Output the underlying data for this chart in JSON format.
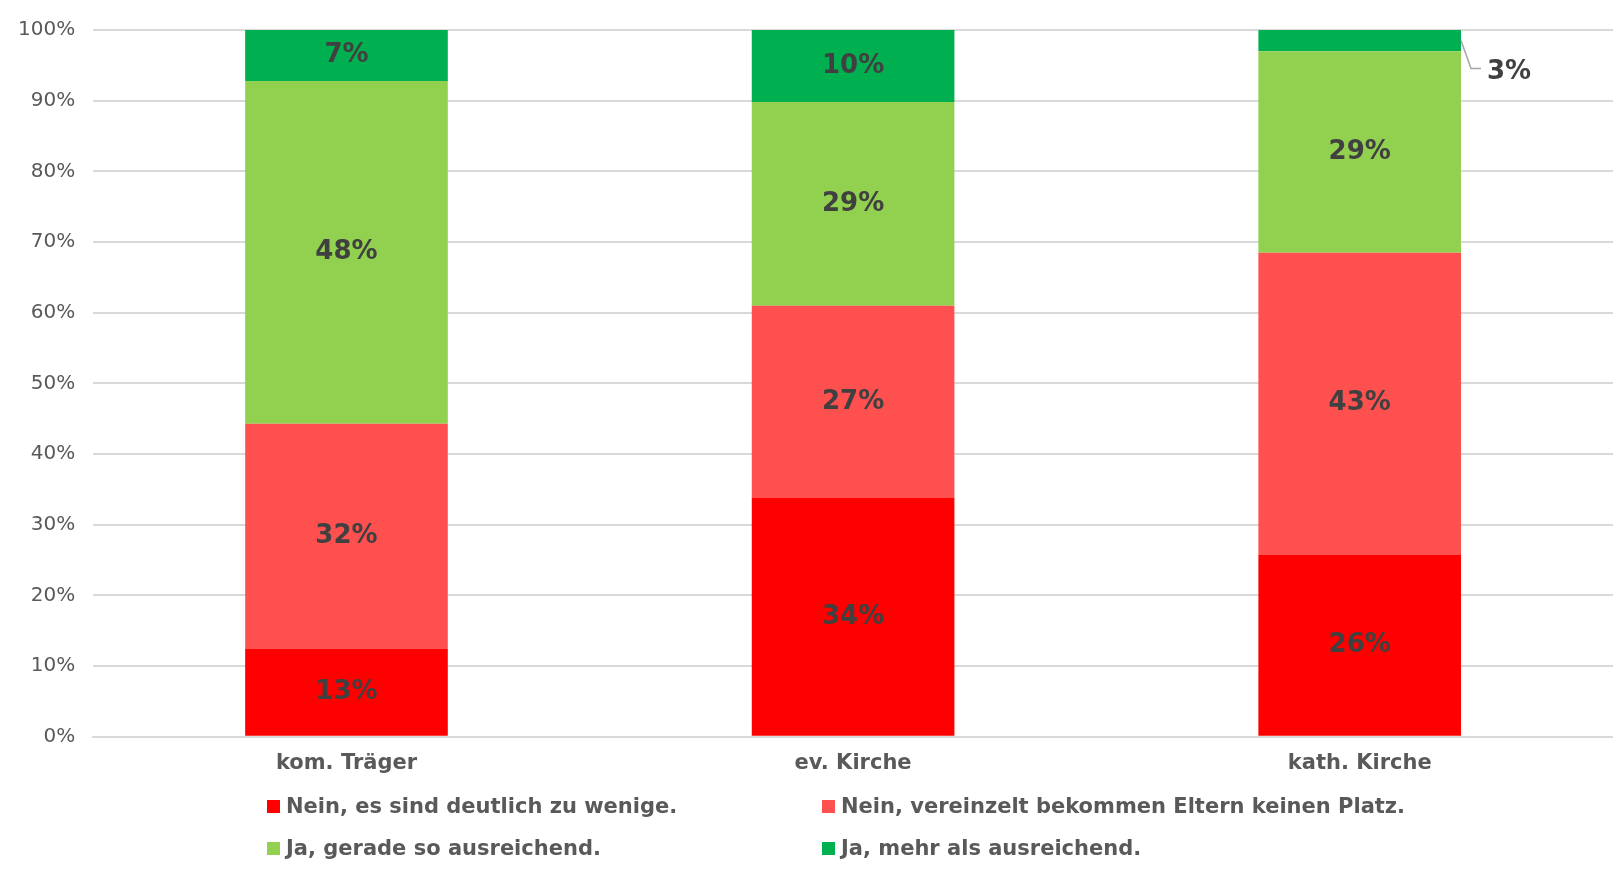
{
  "chart_data": {
    "type": "bar",
    "stacked": true,
    "categories": [
      "kom. Träger",
      "ev. Kirche",
      "kath. Kirche"
    ],
    "series": [
      {
        "name": "Nein, es sind deutlich zu wenige.",
        "color": "#ff0000",
        "values": [
          12.5,
          33.8,
          25.8
        ],
        "value_labels": [
          "13%",
          "34%",
          "26%"
        ]
      },
      {
        "name": "Nein, vereinzelt bekommen Eltern keinen Platz.",
        "color": "#ff5050",
        "values": [
          31.8,
          27.2,
          42.7
        ],
        "value_labels": [
          "32%",
          "27%",
          "43%"
        ]
      },
      {
        "name": "Ja, gerade so ausreichend.",
        "color": "#92d050",
        "values": [
          48.5,
          28.8,
          28.5
        ],
        "value_labels": [
          "48%",
          "29%",
          "29%"
        ]
      },
      {
        "name": "Ja, mehr als ausreichend.",
        "color": "#00b050",
        "values": [
          7.2,
          10.2,
          3.0
        ],
        "value_labels": [
          "7%",
          "10%",
          "3%"
        ]
      }
    ],
    "ylim": [
      0,
      100
    ],
    "yticks": [
      {
        "value": 0,
        "label": "0%"
      },
      {
        "value": 10,
        "label": "10%"
      },
      {
        "value": 20,
        "label": "20%"
      },
      {
        "value": 30,
        "label": "30%"
      },
      {
        "value": 40,
        "label": "40%"
      },
      {
        "value": 50,
        "label": "50%"
      },
      {
        "value": 60,
        "label": "60%"
      },
      {
        "value": 70,
        "label": "70%"
      },
      {
        "value": 80,
        "label": "80%"
      },
      {
        "value": 90,
        "label": "90%"
      },
      {
        "value": 100,
        "label": "100%"
      }
    ],
    "grid": "y",
    "legend": "bottom"
  }
}
